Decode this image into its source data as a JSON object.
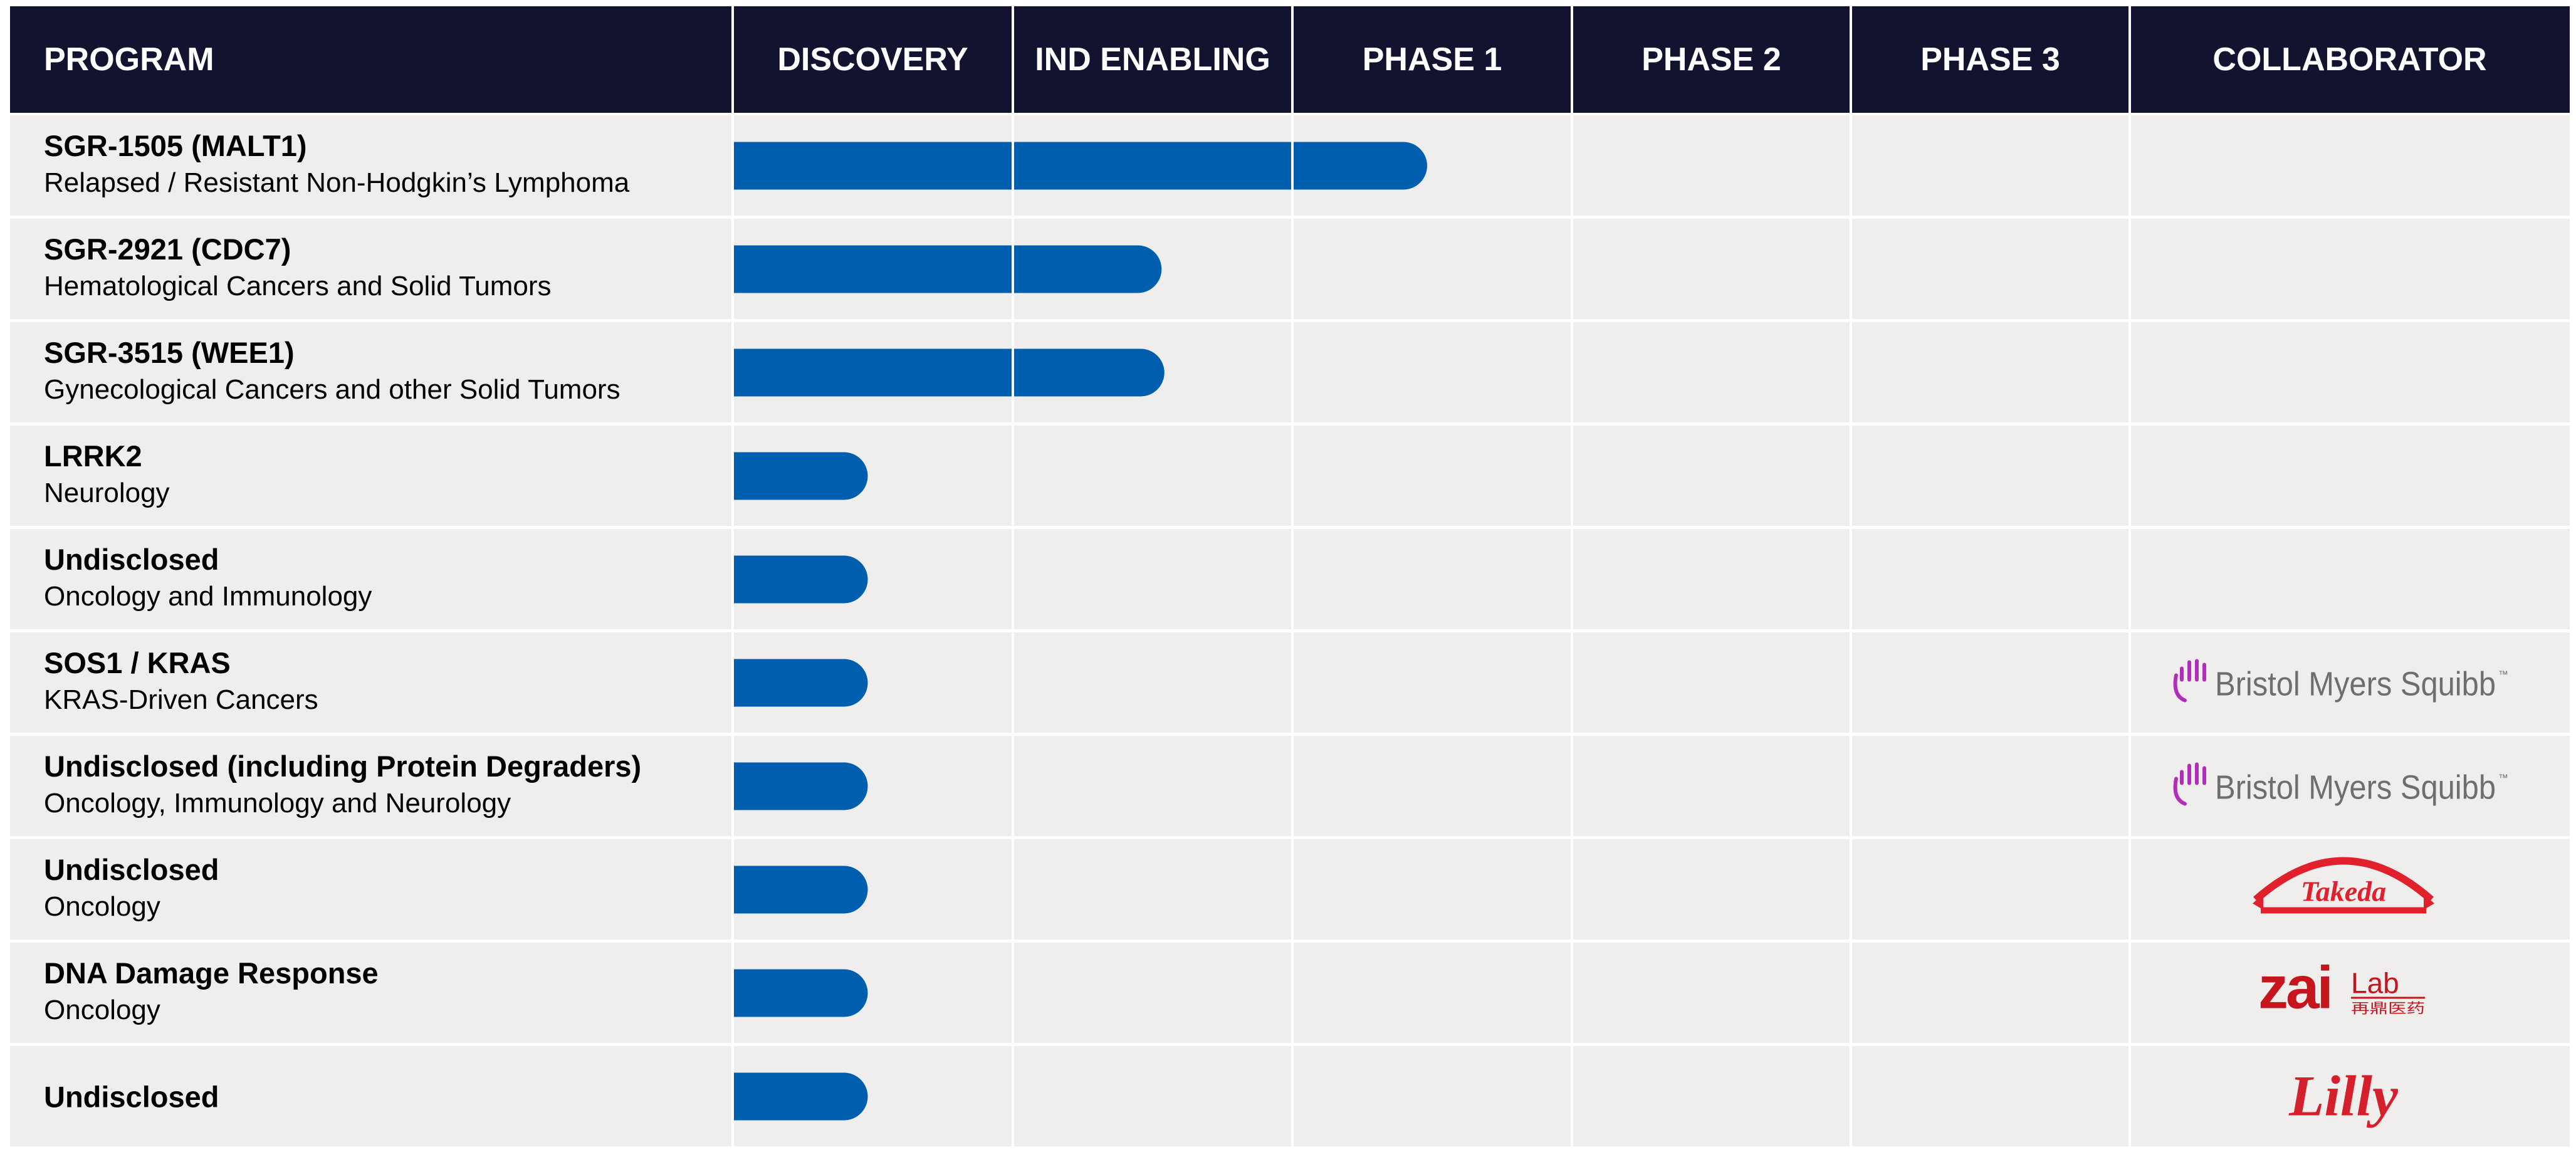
{
  "header": {
    "columns": [
      "PROGRAM",
      "DISCOVERY",
      "IND ENABLING",
      "PHASE 1",
      "PHASE 2",
      "PHASE 3",
      "COLLABORATOR"
    ]
  },
  "colors": {
    "header_bg": "#12132e",
    "row_bg": "#efeeed",
    "bar": "#005eae",
    "bms_accent": "#b12fb8",
    "bms_text": "#6e6e6e",
    "takeda_red": "#e0202a",
    "zai_red": "#c4161c",
    "lilly_red": "#d41f2c"
  },
  "chart_data": {
    "type": "bar",
    "orientation": "horizontal",
    "stages": [
      "DISCOVERY",
      "IND ENABLING",
      "PHASE 1",
      "PHASE 2",
      "PHASE 3"
    ],
    "x_unit": "stages completed",
    "programs": [
      {
        "name": "SGR-1505 (MALT1)",
        "indication": "Relapsed / Resistant Non-Hodgkin’s Lymphoma",
        "progress": 2.5,
        "collaborator": ""
      },
      {
        "name": "SGR-2921 (CDC7)",
        "indication": "Hematological Cancers and Solid Tumors",
        "progress": 1.55,
        "collaborator": ""
      },
      {
        "name": "SGR-3515 (WEE1)",
        "indication": "Gynecological Cancers and other Solid Tumors",
        "progress": 1.56,
        "collaborator": ""
      },
      {
        "name": "LRRK2",
        "indication": "Neurology",
        "progress": 0.5,
        "collaborator": ""
      },
      {
        "name": "Undisclosed",
        "indication": "Oncology and Immunology",
        "progress": 0.5,
        "collaborator": ""
      },
      {
        "name": "SOS1 / KRAS",
        "indication": "KRAS-Driven Cancers",
        "progress": 0.5,
        "collaborator": "Bristol Myers Squibb"
      },
      {
        "name": "Undisclosed (including Protein Degraders)",
        "indication": "Oncology, Immunology and Neurology",
        "progress": 0.5,
        "collaborator": "Bristol Myers Squibb"
      },
      {
        "name": "Undisclosed",
        "indication": "Oncology",
        "progress": 0.5,
        "collaborator": "Takeda"
      },
      {
        "name": "DNA Damage Response",
        "indication": "Oncology",
        "progress": 0.5,
        "collaborator": "Zai Lab"
      },
      {
        "name": "Undisclosed",
        "indication": "",
        "progress": 0.5,
        "collaborator": "Lilly"
      }
    ]
  },
  "collaborator_logos": {
    "bms": {
      "text": "Bristol Myers Squibb",
      "tm": "™",
      "icon": "bms-hand-icon"
    },
    "takeda": {
      "text": "Takeda",
      "icon": "takeda-logo"
    },
    "zai": {
      "text_main": "zai",
      "text_lab": "Lab",
      "text_cn": "再鼎医药",
      "icon": "zai-lab-logo"
    },
    "lilly": {
      "text": "Lilly",
      "icon": "lilly-logo"
    }
  }
}
